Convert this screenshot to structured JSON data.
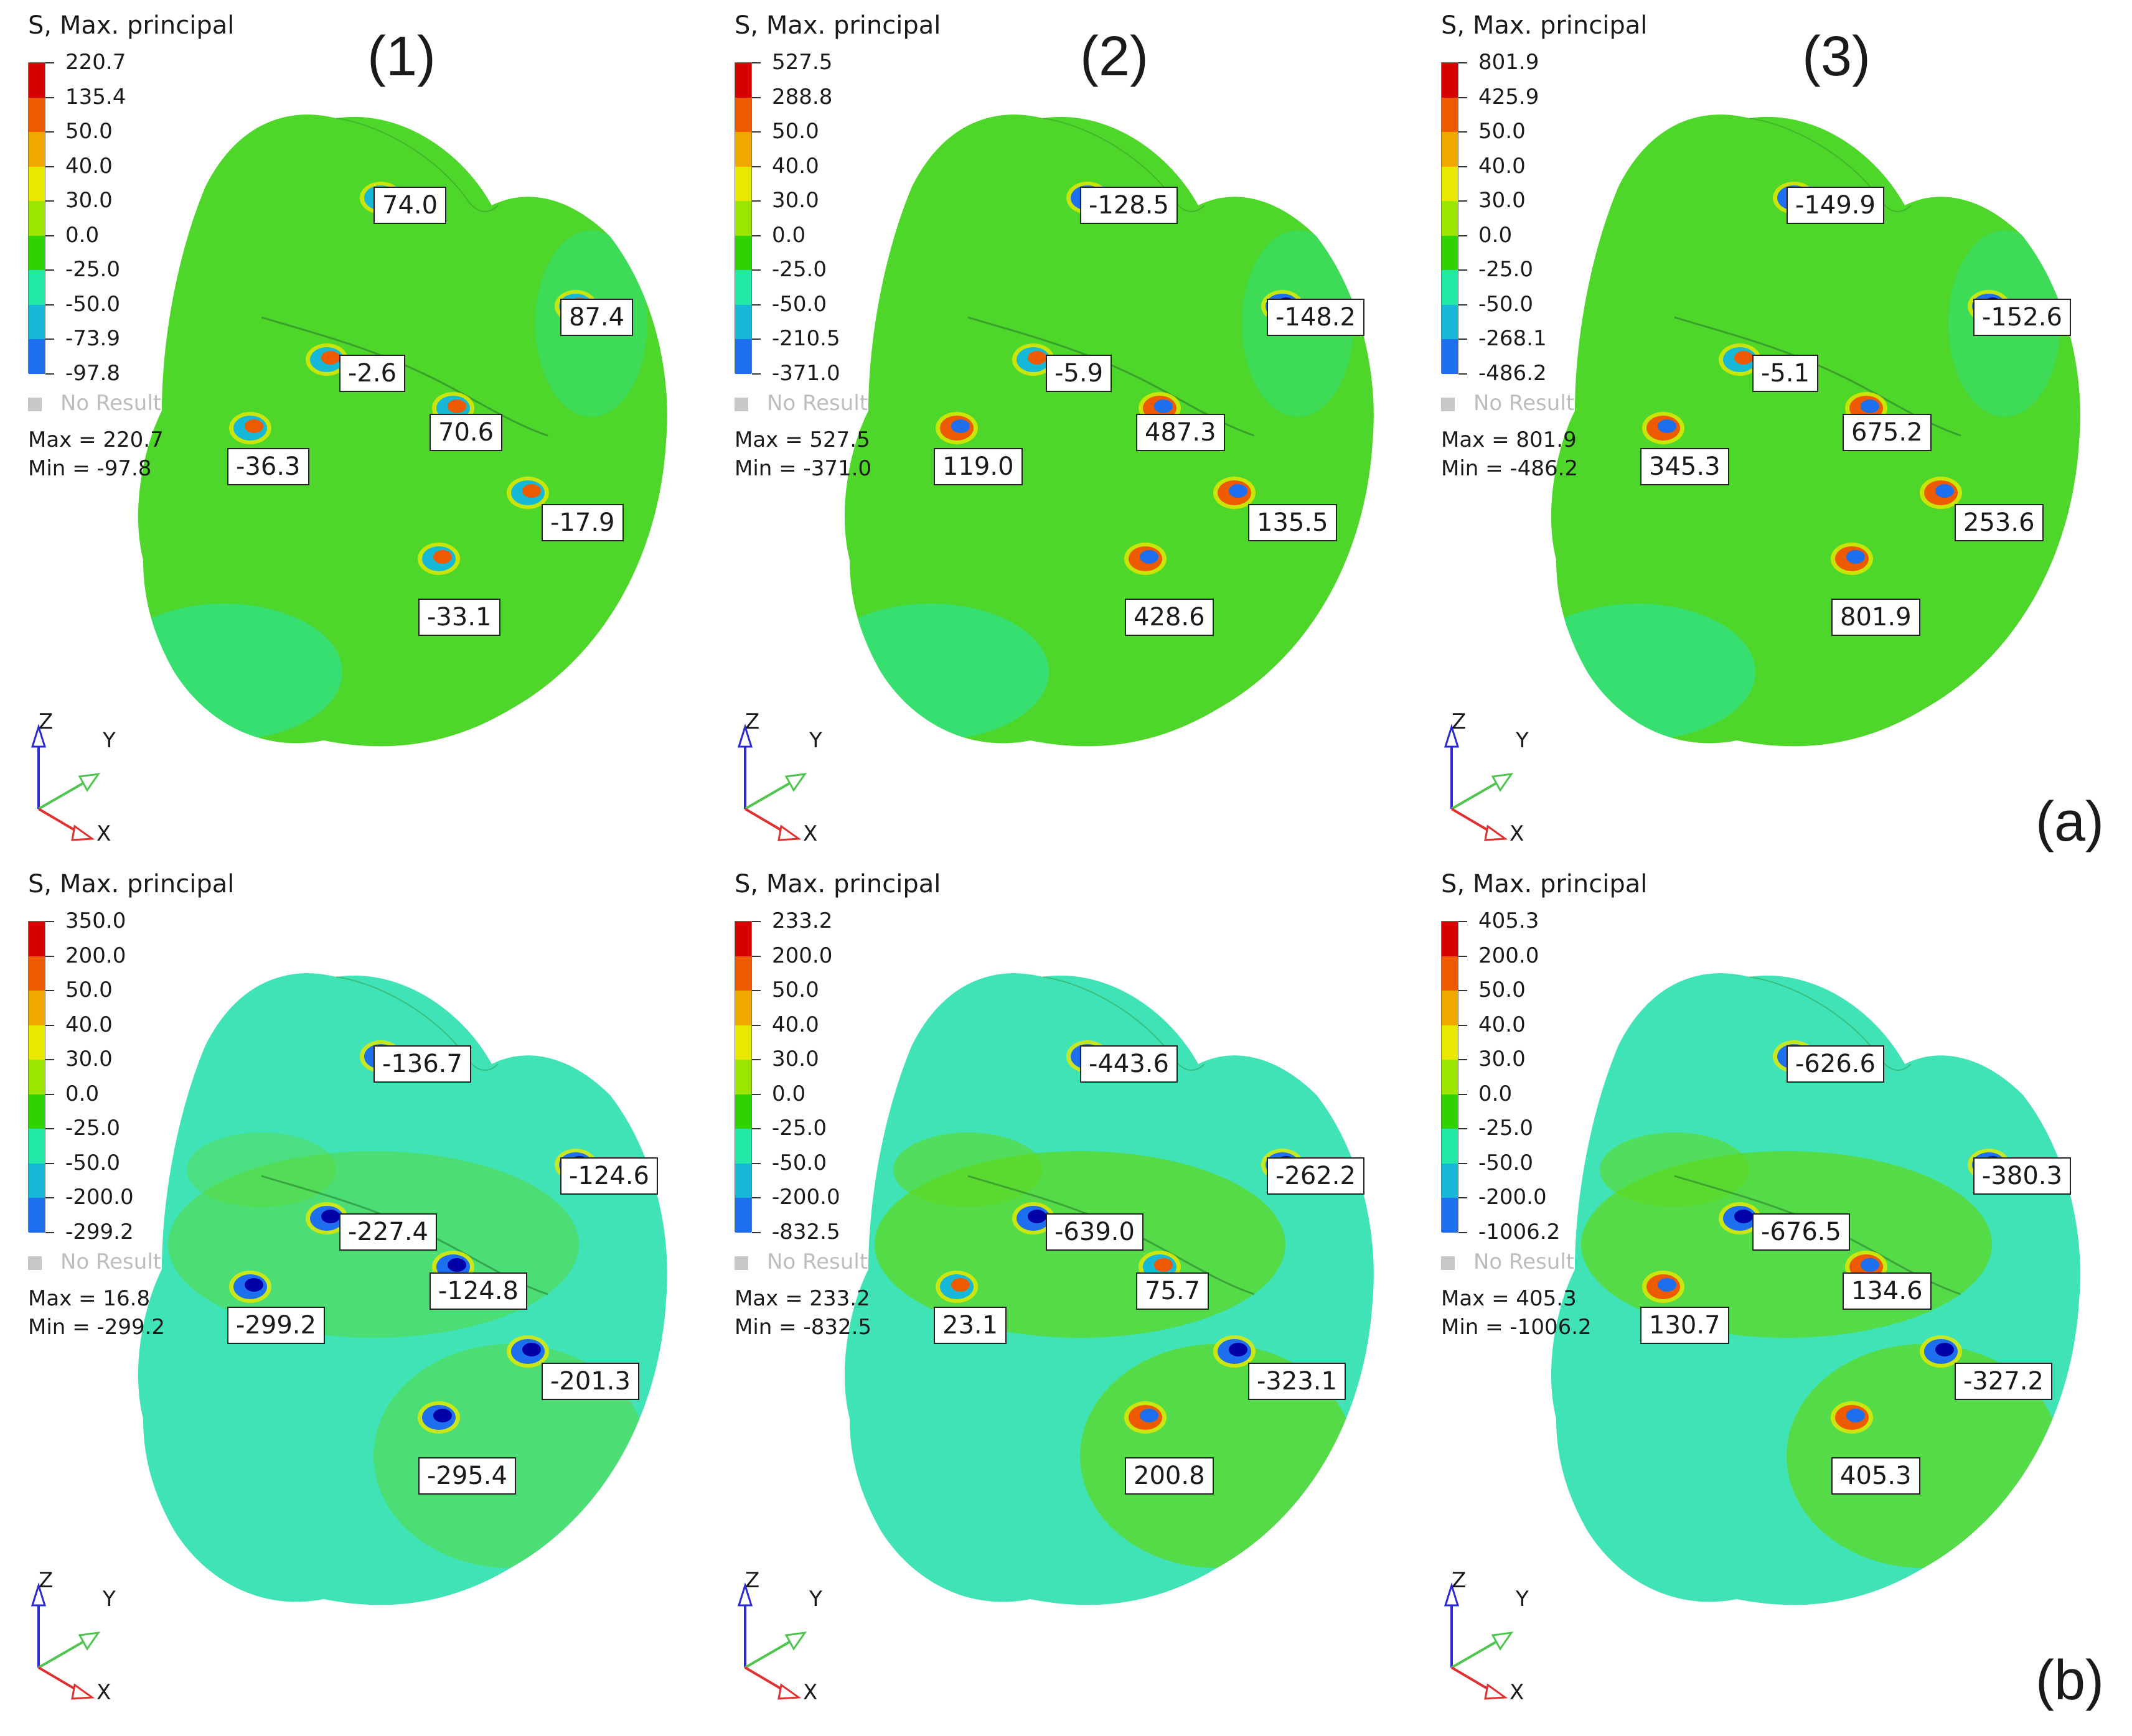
{
  "figure": {
    "column_labels": [
      "(1)",
      "(2)",
      "(3)"
    ],
    "row_labels": [
      "(a)",
      "(b)"
    ],
    "legend_title": "S, Max. principal",
    "no_result_label": "No Result",
    "axis_labels": {
      "z": "Z",
      "y": "Y",
      "x": "X"
    },
    "colors": {
      "bands": [
        "#d60000",
        "#ee5a00",
        "#f0a800",
        "#e8e800",
        "#9ae600",
        "#2ed300",
        "#22e8a8",
        "#16b8d8",
        "#1e6ef0",
        "#0000a8"
      ],
      "surface_a": "#4ed62a",
      "surface_b": "#3fe3b6",
      "patch_b_green": "#5ed823"
    }
  },
  "panels": [
    {
      "id": "a1",
      "legend": [
        "220.7",
        "135.4",
        "50.0",
        "40.0",
        "30.0",
        "0.0",
        "-25.0",
        "-50.0",
        "-73.9",
        "-97.8"
      ],
      "max_text": "Max = 220.7",
      "min_text": "Min = -97.8",
      "probes": [
        "74.0",
        "87.4",
        "-2.6",
        "70.6",
        "-36.3",
        "-17.9",
        "-33.1"
      ]
    },
    {
      "id": "a2",
      "legend": [
        "527.5",
        "288.8",
        "50.0",
        "40.0",
        "30.0",
        "0.0",
        "-25.0",
        "-50.0",
        "-210.5",
        "-371.0"
      ],
      "max_text": "Max = 527.5",
      "min_text": "Min = -371.0",
      "probes": [
        "-128.5",
        "-148.2",
        "-5.9",
        "487.3",
        "119.0",
        "135.5",
        "428.6"
      ]
    },
    {
      "id": "a3",
      "legend": [
        "801.9",
        "425.9",
        "50.0",
        "40.0",
        "30.0",
        "0.0",
        "-25.0",
        "-50.0",
        "-268.1",
        "-486.2"
      ],
      "max_text": "Max = 801.9",
      "min_text": "Min = -486.2",
      "probes": [
        "-149.9",
        "-152.6",
        "-5.1",
        "675.2",
        "345.3",
        "253.6",
        "801.9"
      ]
    },
    {
      "id": "b1",
      "legend": [
        "350.0",
        "200.0",
        "50.0",
        "40.0",
        "30.0",
        "0.0",
        "-25.0",
        "-50.0",
        "-200.0",
        "-299.2"
      ],
      "max_text": "Max = 16.8",
      "min_text": "Min = -299.2",
      "probes": [
        "-136.7",
        "-124.6",
        "-227.4",
        "-124.8",
        "-299.2",
        "-201.3",
        "-295.4"
      ]
    },
    {
      "id": "b2",
      "legend": [
        "233.2",
        "200.0",
        "50.0",
        "40.0",
        "30.0",
        "0.0",
        "-25.0",
        "-50.0",
        "-200.0",
        "-832.5"
      ],
      "max_text": "Max = 233.2",
      "min_text": "Min = -832.5",
      "probes": [
        "-443.6",
        "-262.2",
        "-639.0",
        "75.7",
        "23.1",
        "-323.1",
        "200.8"
      ]
    },
    {
      "id": "b3",
      "legend": [
        "405.3",
        "200.0",
        "50.0",
        "40.0",
        "30.0",
        "0.0",
        "-25.0",
        "-50.0",
        "-200.0",
        "-1006.2"
      ],
      "max_text": "Max = 405.3",
      "min_text": "Min = -1006.2",
      "probes": [
        "-626.6",
        "-380.3",
        "-676.5",
        "134.6",
        "130.7",
        "-327.2",
        "405.3"
      ]
    }
  ]
}
